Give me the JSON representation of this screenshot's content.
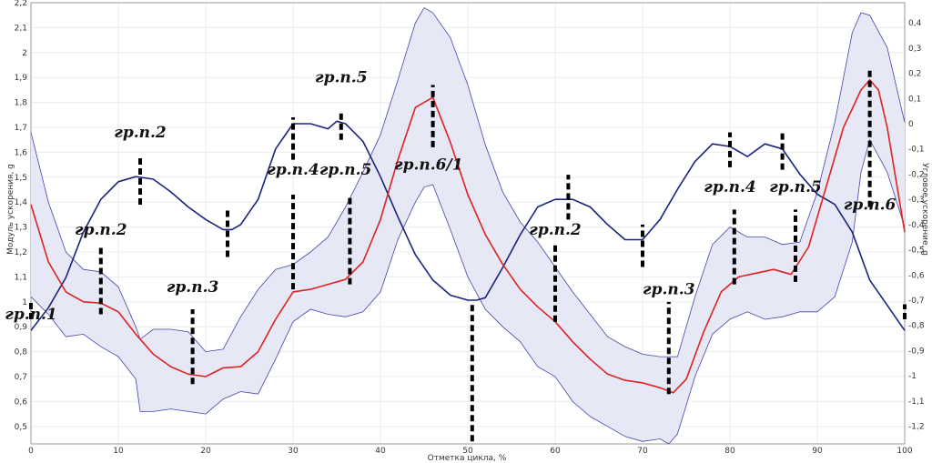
{
  "chart_data": {
    "type": "line",
    "title": "",
    "xlabel": "Отметка цикла, %",
    "ylabel": "Модуль ускорения, g",
    "y2label": "Угловое ускорение, g",
    "xlim": [
      0,
      100
    ],
    "ylim": [
      0.43,
      2.2
    ],
    "y2lim": [
      -1.27,
      0.48
    ],
    "grid": true,
    "x_ticks": [
      "0",
      "10",
      "20",
      "30",
      "40",
      "50",
      "60",
      "70",
      "80",
      "90",
      "100"
    ],
    "y_ticks": [
      "0,5",
      "0,6",
      "0,7",
      "0,8",
      "0,9",
      "1",
      "1,1",
      "1,2",
      "1,3",
      "1,4",
      "1,5",
      "1,6",
      "1,7",
      "1,8",
      "1,9",
      "2",
      "2,1",
      "2,2"
    ],
    "y2_ticks": [
      "-1,2",
      "-1,1",
      "-1",
      "-0,9",
      "-0,8",
      "-0,7",
      "-0,6",
      "-0,5",
      "-0,4",
      "-0,3",
      "-0,2",
      "-0,1",
      "0",
      "0,1",
      "0,2",
      "0,3",
      "0,4"
    ],
    "colors": {
      "mean": "#dd2222",
      "band_fill": "#e6e8f5",
      "band_edge": "#4444aa",
      "angular": "#1a237e",
      "marker": "#000000"
    },
    "series": [
      {
        "axis": "left",
        "x": [
          0,
          2,
          4,
          6,
          8,
          10,
          12,
          14,
          16,
          18,
          20,
          22,
          24,
          26,
          28,
          30,
          32,
          34,
          36,
          38,
          40,
          42,
          44,
          46,
          48,
          50,
          52,
          54,
          56,
          58,
          60,
          62,
          64,
          66,
          68,
          70,
          72,
          73.5,
          75,
          77,
          79,
          81,
          83,
          85,
          87,
          89,
          91,
          93,
          95,
          96,
          97,
          98,
          100
        ],
        "values": [
          1.39,
          1.16,
          1.04,
          1.0,
          0.995,
          0.96,
          0.87,
          0.79,
          0.74,
          0.71,
          0.7,
          0.735,
          0.74,
          0.8,
          0.93,
          1.04,
          1.05,
          1.07,
          1.09,
          1.16,
          1.33,
          1.57,
          1.78,
          1.82,
          1.64,
          1.43,
          1.27,
          1.15,
          1.05,
          0.98,
          0.92,
          0.84,
          0.77,
          0.71,
          0.685,
          0.675,
          0.655,
          0.635,
          0.69,
          0.88,
          1.04,
          1.1,
          1.115,
          1.13,
          1.11,
          1.22,
          1.46,
          1.7,
          1.85,
          1.89,
          1.85,
          1.7,
          1.28
        ]
      },
      {
        "axis": "left",
        "x": [
          0,
          2,
          4,
          6,
          8,
          10,
          12,
          12.5,
          14,
          16,
          18,
          20,
          22,
          24,
          26,
          28,
          30,
          32,
          34,
          36,
          38,
          40,
          42,
          44,
          45,
          46,
          48,
          50,
          52,
          54,
          56,
          58,
          60,
          62,
          64,
          66,
          68,
          70,
          72,
          74,
          76,
          78,
          80,
          82,
          84,
          86,
          88,
          90,
          92,
          94,
          95,
          96,
          98,
          100
        ],
        "values": [
          1.68,
          1.4,
          1.2,
          1.13,
          1.12,
          1.06,
          0.9,
          0.85,
          0.89,
          0.89,
          0.88,
          0.8,
          0.81,
          0.94,
          1.05,
          1.13,
          1.15,
          1.2,
          1.26,
          1.38,
          1.52,
          1.67,
          1.89,
          2.12,
          2.18,
          2.16,
          2.06,
          1.87,
          1.63,
          1.44,
          1.32,
          1.24,
          1.14,
          1.04,
          0.95,
          0.86,
          0.82,
          0.79,
          0.78,
          0.78,
          1.02,
          1.23,
          1.3,
          1.26,
          1.26,
          1.23,
          1.24,
          1.44,
          1.72,
          2.08,
          2.16,
          2.15,
          2.02,
          1.72
        ]
      },
      {
        "axis": "left",
        "x": [
          0,
          2,
          4,
          6,
          8,
          10,
          12,
          12.5,
          14,
          16,
          18,
          20,
          22,
          24,
          26,
          28,
          30,
          32,
          34,
          36,
          38,
          40,
          42,
          44,
          45,
          46,
          48,
          50,
          52,
          54,
          56,
          58,
          60,
          62,
          64,
          66,
          68,
          70,
          72,
          73,
          74,
          76,
          78,
          80,
          82,
          84,
          86,
          88,
          90,
          92,
          94,
          95,
          96,
          98,
          100
        ],
        "values": [
          1.02,
          0.95,
          0.86,
          0.87,
          0.82,
          0.78,
          0.69,
          0.56,
          0.56,
          0.57,
          0.56,
          0.55,
          0.61,
          0.64,
          0.63,
          0.77,
          0.92,
          0.97,
          0.95,
          0.94,
          0.96,
          1.04,
          1.25,
          1.4,
          1.46,
          1.47,
          1.29,
          1.1,
          0.97,
          0.9,
          0.84,
          0.74,
          0.7,
          0.6,
          0.54,
          0.5,
          0.46,
          0.44,
          0.45,
          0.43,
          0.47,
          0.7,
          0.87,
          0.93,
          0.96,
          0.93,
          0.94,
          0.96,
          0.96,
          1.02,
          1.24,
          1.52,
          1.65,
          1.52,
          1.3
        ]
      },
      {
        "axis": "right",
        "x": [
          0,
          2,
          4,
          6,
          8,
          10,
          12,
          14,
          16,
          18,
          20,
          22,
          23,
          24,
          26,
          28,
          30,
          32,
          34,
          35,
          36,
          38,
          40,
          42,
          44,
          46,
          48,
          50,
          51,
          52,
          54,
          56,
          58,
          60,
          62,
          64,
          66,
          68,
          70,
          72,
          74,
          76,
          78,
          80,
          82,
          84,
          86,
          88,
          90,
          92,
          94,
          96,
          98,
          100
        ],
        "values": [
          -0.82,
          -0.73,
          -0.61,
          -0.43,
          -0.3,
          -0.23,
          -0.21,
          -0.22,
          -0.27,
          -0.33,
          -0.38,
          -0.42,
          -0.42,
          -0.4,
          -0.3,
          -0.1,
          0.0,
          0.0,
          -0.02,
          0.01,
          0.0,
          -0.07,
          -0.21,
          -0.37,
          -0.52,
          -0.62,
          -0.68,
          -0.7,
          -0.7,
          -0.69,
          -0.57,
          -0.44,
          -0.33,
          -0.3,
          -0.3,
          -0.33,
          -0.4,
          -0.46,
          -0.46,
          -0.38,
          -0.26,
          -0.15,
          -0.08,
          -0.09,
          -0.13,
          -0.08,
          -0.1,
          -0.2,
          -0.28,
          -0.32,
          -0.43,
          -0.62,
          -0.72,
          -0.82
        ]
      }
    ],
    "annotations": [
      {
        "label": "гр.п.1",
        "x": 0,
        "y": 0.93
      },
      {
        "label": "гр.п.2",
        "x": 12.5,
        "y": 1.66
      },
      {
        "label": "гр.п.2",
        "x": 8,
        "y": 1.27
      },
      {
        "label": "гр.п.3",
        "x": 18.5,
        "y": 1.04
      },
      {
        "label": "гр.п.4",
        "x": 30,
        "y": 1.51
      },
      {
        "label": "гр.п.5",
        "x": 35.5,
        "y": 1.88
      },
      {
        "label": "гр.п.5",
        "x": 36,
        "y": 1.51
      },
      {
        "label": "гр.п.6/1",
        "x": 45.5,
        "y": 1.53
      },
      {
        "label": "гр.п.2",
        "x": 60,
        "y": 1.27
      },
      {
        "label": "гр.п.3",
        "x": 73,
        "y": 1.03
      },
      {
        "label": "гр.п.4",
        "x": 80,
        "y": 1.44
      },
      {
        "label": "гр.п.5",
        "x": 87.5,
        "y": 1.44
      },
      {
        "label": "гр.п.6",
        "x": 96,
        "y": 1.37
      }
    ],
    "markers": [
      {
        "x": 0,
        "y1": 0.93,
        "y2": 1.0
      },
      {
        "x": 8,
        "y1": 0.95,
        "y2": 1.22
      },
      {
        "x": 12.5,
        "y1": 1.39,
        "y2": 1.58
      },
      {
        "x": 18.5,
        "y1": 0.67,
        "y2": 0.97
      },
      {
        "x": 22.5,
        "y1": 1.18,
        "y2": 1.37
      },
      {
        "x": 30,
        "y1": 1.05,
        "y2": 1.43
      },
      {
        "x": 30,
        "y1": 1.57,
        "y2": 1.74
      },
      {
        "x": 35.5,
        "y1": 1.65,
        "y2": 1.77
      },
      {
        "x": 36.5,
        "y1": 1.07,
        "y2": 1.43
      },
      {
        "x": 46,
        "y1": 1.62,
        "y2": 1.87
      },
      {
        "x": 50.5,
        "y1": 0.44,
        "y2": 0.99
      },
      {
        "x": 60,
        "y1": 0.92,
        "y2": 1.24
      },
      {
        "x": 61.5,
        "y1": 1.33,
        "y2": 1.51
      },
      {
        "x": 70,
        "y1": 1.14,
        "y2": 1.31
      },
      {
        "x": 73,
        "y1": 0.63,
        "y2": 1.0
      },
      {
        "x": 80,
        "y1": 1.54,
        "y2": 1.68
      },
      {
        "x": 80.5,
        "y1": 1.07,
        "y2": 1.37
      },
      {
        "x": 86,
        "y1": 1.53,
        "y2": 1.69
      },
      {
        "x": 87.5,
        "y1": 1.08,
        "y2": 1.37
      },
      {
        "x": 96,
        "y1": 1.38,
        "y2": 1.93
      },
      {
        "x": 100,
        "y1": 0.93,
        "y2": 0.99
      }
    ]
  }
}
